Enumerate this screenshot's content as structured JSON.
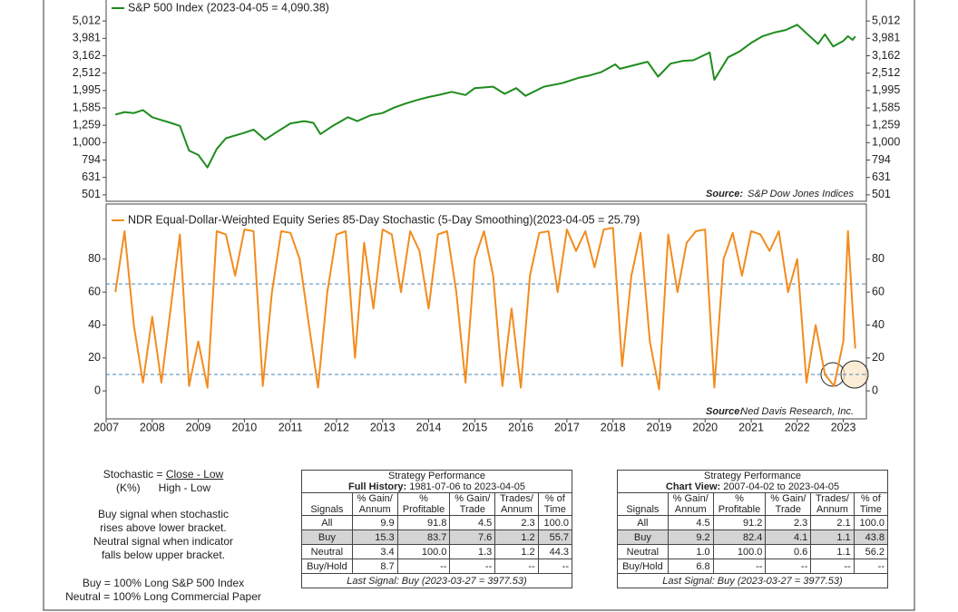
{
  "chart_data": [
    {
      "type": "line",
      "log_scale": true,
      "series": [
        {
          "name": "S&P 500 Index (2023-04-05 = 4,090.38)",
          "color": "#1e8c1e",
          "x": [
            2007.2,
            2007.4,
            2007.6,
            2007.8,
            2008.0,
            2008.2,
            2008.4,
            2008.6,
            2008.8,
            2009.0,
            2009.2,
            2009.4,
            2009.6,
            2009.8,
            2010.0,
            2010.2,
            2010.45,
            2010.7,
            2011.0,
            2011.3,
            2011.5,
            2011.65,
            2011.9,
            2012.25,
            2012.45,
            2012.75,
            2013.0,
            2013.25,
            2013.5,
            2013.75,
            2014.0,
            2014.25,
            2014.5,
            2014.8,
            2015.0,
            2015.4,
            2015.65,
            2015.9,
            2016.1,
            2016.5,
            2016.9,
            2017.25,
            2017.5,
            2017.75,
            2018.05,
            2018.15,
            2018.75,
            2018.98,
            2019.25,
            2019.5,
            2019.75,
            2020.1,
            2020.2,
            2020.5,
            2020.75,
            2021.0,
            2021.25,
            2021.5,
            2021.75,
            2022.0,
            2022.45,
            2022.6,
            2022.78,
            2023.0,
            2023.1,
            2023.2,
            2023.26
          ],
          "values": [
            1450,
            1500,
            1480,
            1540,
            1400,
            1350,
            1300,
            1250,
            900,
            850,
            720,
            920,
            1060,
            1100,
            1140,
            1190,
            1040,
            1150,
            1290,
            1330,
            1300,
            1120,
            1240,
            1400,
            1330,
            1440,
            1480,
            1590,
            1680,
            1760,
            1830,
            1890,
            1960,
            1880,
            2060,
            2100,
            1910,
            2060,
            1860,
            2100,
            2200,
            2360,
            2440,
            2550,
            2820,
            2660,
            2920,
            2400,
            2850,
            2950,
            2980,
            3300,
            2300,
            3100,
            3350,
            3750,
            4100,
            4300,
            4450,
            4770,
            3700,
            4200,
            3580,
            3850,
            4100,
            3900,
            4090
          ]
        }
      ],
      "ylim": [
        460,
        6780
      ],
      "yticks": [
        {
          "value": 501,
          "label": "501"
        },
        {
          "value": 631,
          "label": "631"
        },
        {
          "value": 794,
          "label": "794"
        },
        {
          "value": 1000,
          "label": "1,000"
        },
        {
          "value": 1259,
          "label": "1,259"
        },
        {
          "value": 1585,
          "label": "1,585"
        },
        {
          "value": 1995,
          "label": "1,995"
        },
        {
          "value": 2512,
          "label": "2,512"
        },
        {
          "value": 3162,
          "label": "3,162"
        },
        {
          "value": 3981,
          "label": "3,981"
        },
        {
          "value": 5012,
          "label": "5,012"
        }
      ],
      "xlim": [
        2007,
        2023.5
      ],
      "source_label": "Source:",
      "source": "S&P Dow Jones Indices"
    },
    {
      "type": "line",
      "series": [
        {
          "name": "NDR Equal-Dollar-Weighted Equity Series 85-Day Stochastic (5-Day Smoothing)(2023-04-05 = 25.79)",
          "color": "#f28c1e",
          "x": [
            2007.2,
            2007.4,
            2007.6,
            2007.8,
            2008.0,
            2008.2,
            2008.4,
            2008.6,
            2008.8,
            2009.0,
            2009.2,
            2009.4,
            2009.6,
            2009.8,
            2010.0,
            2010.2,
            2010.4,
            2010.6,
            2010.8,
            2011.0,
            2011.2,
            2011.4,
            2011.6,
            2011.8,
            2012.0,
            2012.2,
            2012.4,
            2012.6,
            2012.8,
            2013.0,
            2013.2,
            2013.4,
            2013.6,
            2013.8,
            2014.0,
            2014.2,
            2014.4,
            2014.6,
            2014.8,
            2015.0,
            2015.2,
            2015.4,
            2015.6,
            2015.8,
            2016.0,
            2016.2,
            2016.4,
            2016.6,
            2016.8,
            2017.0,
            2017.2,
            2017.4,
            2017.6,
            2017.8,
            2018.0,
            2018.2,
            2018.4,
            2018.6,
            2018.8,
            2019.0,
            2019.2,
            2019.4,
            2019.6,
            2019.8,
            2020.0,
            2020.2,
            2020.4,
            2020.6,
            2020.8,
            2021.0,
            2021.2,
            2021.4,
            2021.6,
            2021.8,
            2022.0,
            2022.2,
            2022.4,
            2022.6,
            2022.8,
            2023.0,
            2023.1,
            2023.2,
            2023.26
          ],
          "values": [
            60,
            97,
            40,
            5,
            45,
            5,
            50,
            95,
            3,
            30,
            2,
            97,
            95,
            70,
            98,
            97,
            3,
            60,
            97,
            96,
            80,
            40,
            2,
            60,
            95,
            97,
            20,
            90,
            50,
            98,
            95,
            60,
            97,
            85,
            50,
            95,
            97,
            60,
            5,
            80,
            97,
            70,
            3,
            50,
            2,
            70,
            96,
            97,
            60,
            98,
            85,
            97,
            75,
            98,
            99,
            15,
            70,
            96,
            30,
            1,
            95,
            60,
            90,
            97,
            98,
            2,
            80,
            96,
            70,
            97,
            95,
            85,
            97,
            60,
            80,
            5,
            40,
            10,
            3,
            30,
            97,
            50,
            25.79
          ]
        }
      ],
      "ylim": [
        -17,
        113.5
      ],
      "yticks": [
        0,
        20,
        40,
        60,
        80
      ],
      "reference_lines": [
        65,
        10
      ],
      "reference_color": "#4a86b8",
      "xlim": [
        2007,
        2023.5
      ],
      "xticks": [
        2007,
        2008,
        2009,
        2010,
        2011,
        2012,
        2013,
        2014,
        2015,
        2016,
        2017,
        2018,
        2019,
        2020,
        2021,
        2022,
        2023
      ],
      "source_label": "Source:",
      "source": "Ned Davis Research, Inc."
    }
  ],
  "notes": {
    "formula_label": "Stochastic =",
    "numerator": "Close - Low",
    "k_label": "(K%)",
    "denominator": "High - Low",
    "buy_rule": [
      "Buy signal when stochastic",
      "rises above lower bracket."
    ],
    "neutral_rule": [
      "Neutral signal when indicator",
      "falls below upper bracket."
    ],
    "buy_def": "Buy = 100% Long S&P 500 Index",
    "neutral_def": "Neutral = 100% Long Commercial Paper"
  },
  "tables": [
    {
      "title": "Strategy Performance",
      "period_label": "Full History:",
      "period": "1981-07-06 to 2023-04-05",
      "headers": [
        [
          "Signals"
        ],
        [
          "% Gain/",
          "Annum"
        ],
        [
          "%",
          "Profitable"
        ],
        [
          "% Gain/",
          "Trade"
        ],
        [
          "Trades/",
          "Annum"
        ],
        [
          "% of",
          "Time"
        ]
      ],
      "rows": [
        [
          "All",
          "9.9",
          "91.8",
          "4.5",
          "2.3",
          "100.0"
        ],
        [
          "Buy",
          "15.3",
          "83.7",
          "7.6",
          "1.2",
          "55.7"
        ],
        [
          "Neutral",
          "3.4",
          "100.0",
          "1.3",
          "1.2",
          "44.3"
        ],
        [
          "Buy/Hold",
          "8.7",
          "--",
          "--",
          "--",
          "--"
        ]
      ],
      "footer": "Last Signal: Buy (2023-03-27 = 3977.53)"
    },
    {
      "title": "Strategy Performance",
      "period_label": "Chart View:",
      "period": "2007-04-02 to 2023-04-05",
      "headers": [
        [
          "Signals"
        ],
        [
          "% Gain/",
          "Annum"
        ],
        [
          "%",
          "Profitable"
        ],
        [
          "% Gain/",
          "Trade"
        ],
        [
          "Trades/",
          "Annum"
        ],
        [
          "% of",
          "Time"
        ]
      ],
      "rows": [
        [
          "All",
          "4.5",
          "91.2",
          "2.3",
          "2.1",
          "100.0"
        ],
        [
          "Buy",
          "9.2",
          "82.4",
          "4.1",
          "1.1",
          "43.8"
        ],
        [
          "Neutral",
          "1.0",
          "100.0",
          "0.6",
          "1.1",
          "56.2"
        ],
        [
          "Buy/Hold",
          "6.8",
          "--",
          "--",
          "--",
          "--"
        ]
      ],
      "footer": "Last Signal: Buy (2023-03-27 = 3977.53)"
    }
  ]
}
